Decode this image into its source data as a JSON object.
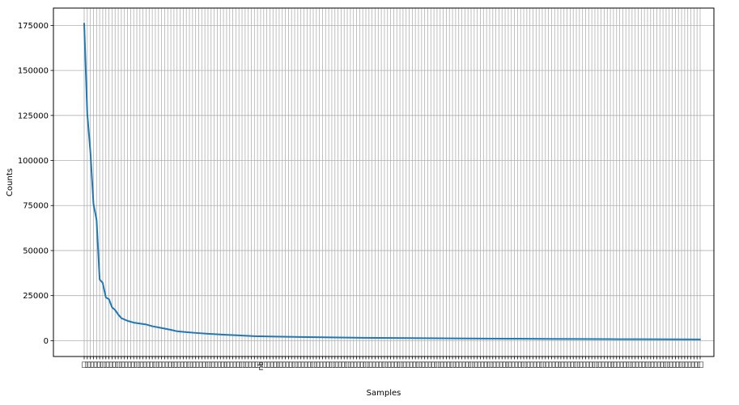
{
  "chart_data": {
    "type": "line",
    "xlabel": "Samples",
    "ylabel": "Counts",
    "ylim": [
      -8800,
      184600
    ],
    "y_ticks": [
      0,
      25000,
      50000,
      75000,
      100000,
      125000,
      150000,
      175000
    ],
    "y_tick_labels": [
      "0",
      "25000",
      "50000",
      "75000",
      "100000",
      "125000",
      "150000",
      "175000"
    ],
    "x_tick_count": 200,
    "x_tick_glyph": "□",
    "x_tick_text_labels": [
      {
        "index": 57,
        "label": "nb"
      }
    ],
    "grid": true,
    "line_color": "#1f77b4",
    "grid_color": "#b0b0b0",
    "series": [
      {
        "x": [
          0,
          1,
          2,
          3,
          4,
          5,
          6,
          7,
          8,
          9,
          10,
          11,
          12,
          14,
          16,
          18,
          20,
          22,
          25,
          28,
          30,
          33,
          36,
          40,
          45,
          50,
          55,
          60,
          70,
          80,
          90,
          100,
          110,
          120,
          130,
          140,
          150,
          160,
          170,
          180,
          190,
          199
        ],
        "values": [
          176000,
          126000,
          105000,
          76000,
          67000,
          34000,
          32000,
          24000,
          23000,
          18500,
          17000,
          14500,
          12500,
          11000,
          10000,
          9500,
          9000,
          8000,
          7000,
          6000,
          5200,
          4700,
          4300,
          3800,
          3300,
          2900,
          2500,
          2300,
          2000,
          1800,
          1600,
          1450,
          1350,
          1250,
          1150,
          1050,
          950,
          880,
          820,
          770,
          720,
          670
        ]
      }
    ]
  }
}
